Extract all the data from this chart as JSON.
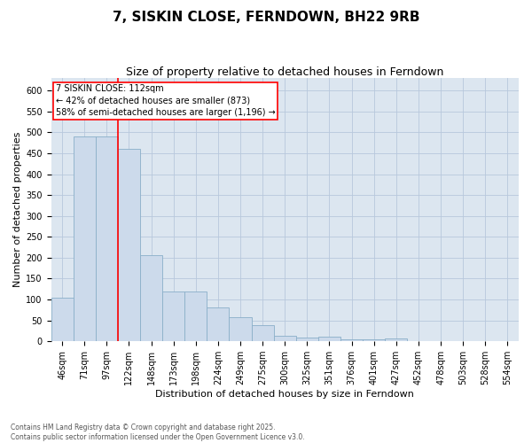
{
  "title": "7, SISKIN CLOSE, FERNDOWN, BH22 9RB",
  "subtitle": "Size of property relative to detached houses in Ferndown",
  "xlabel": "Distribution of detached houses by size in Ferndown",
  "ylabel": "Number of detached properties",
  "categories": [
    "46sqm",
    "71sqm",
    "97sqm",
    "122sqm",
    "148sqm",
    "173sqm",
    "198sqm",
    "224sqm",
    "249sqm",
    "275sqm",
    "300sqm",
    "325sqm",
    "351sqm",
    "376sqm",
    "401sqm",
    "427sqm",
    "452sqm",
    "478sqm",
    "503sqm",
    "528sqm",
    "554sqm"
  ],
  "values": [
    105,
    490,
    490,
    460,
    207,
    120,
    120,
    82,
    57,
    38,
    13,
    8,
    11,
    4,
    5,
    6,
    0,
    0,
    0,
    0,
    0
  ],
  "bar_color": "#ccdaeb",
  "bar_edge_color": "#8aafc8",
  "vline_x": 2.5,
  "vline_color": "red",
  "annotation_text": "7 SISKIN CLOSE: 112sqm\n← 42% of detached houses are smaller (873)\n58% of semi-detached houses are larger (1,196) →",
  "annotation_box_color": "white",
  "annotation_box_edge": "red",
  "ylim": [
    0,
    630
  ],
  "yticks": [
    0,
    50,
    100,
    150,
    200,
    250,
    300,
    350,
    400,
    450,
    500,
    550,
    600
  ],
  "grid_color": "#b8c8dc",
  "bg_color": "#dce6f0",
  "footer": "Contains HM Land Registry data © Crown copyright and database right 2025.\nContains public sector information licensed under the Open Government Licence v3.0.",
  "title_fontsize": 11,
  "subtitle_fontsize": 9,
  "axis_label_fontsize": 8,
  "tick_fontsize": 7,
  "annot_fontsize": 7
}
